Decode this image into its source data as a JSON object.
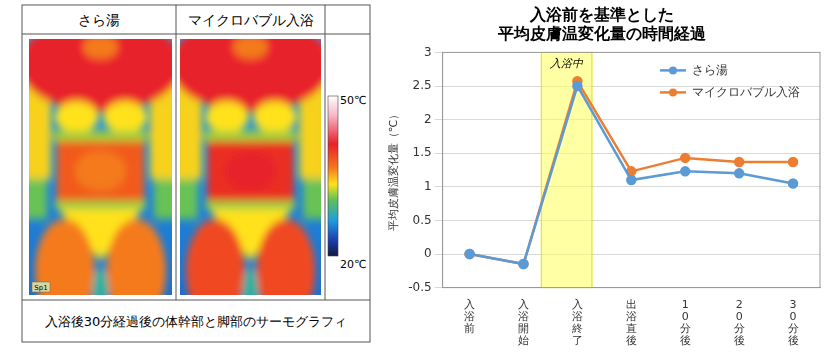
{
  "thermography": {
    "columns": [
      "さら湯",
      "マイクロバブル入浴"
    ],
    "marker_label": "Sp1",
    "colorbar": {
      "range": [
        20,
        50
      ],
      "ticks": [
        {
          "value": 20,
          "label": "20℃"
        },
        {
          "value": 50,
          "label": "50℃"
        }
      ]
    },
    "caption": "入浴後30分経過後の体幹部と脚部のサーモグラフィ"
  },
  "chart_data": {
    "type": "line",
    "title": [
      "入浴前を基準とした",
      "平均皮膚温変化量の時間経過"
    ],
    "y_label": "平均皮膚温変化量（℃）",
    "categories": [
      "入浴前",
      "入浴開始",
      "入浴終了",
      "出浴直後",
      "10分後",
      "20分後",
      "30分後"
    ],
    "series": [
      {
        "name": "さら湯",
        "color": "#5b9bd5",
        "marker": "circle",
        "values": [
          0,
          -0.15,
          2.5,
          1.1,
          1.23,
          1.2,
          1.05
        ]
      },
      {
        "name": "マイクロバブル入浴",
        "color": "#ed7d31",
        "marker": "circle",
        "values": [
          0,
          -0.15,
          2.57,
          1.23,
          1.43,
          1.37,
          1.37
        ]
      }
    ],
    "ylim": [
      -0.5,
      3
    ],
    "yticks": [
      -0.5,
      0,
      0.5,
      1,
      1.5,
      2,
      2.5,
      3
    ],
    "grid": true,
    "legend": "upper right",
    "annotation": {
      "text": "入浴中",
      "span": [
        "入浴開始",
        "入浴終了"
      ]
    }
  }
}
